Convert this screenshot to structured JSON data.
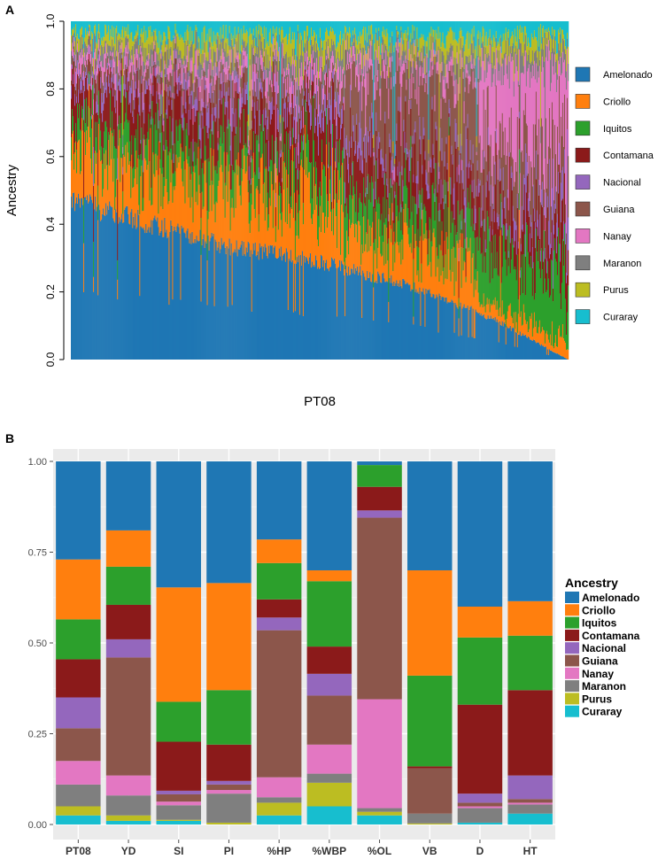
{
  "chart_data": [
    {
      "panel": "A",
      "type": "bar",
      "subtype": "stacked-100-percent-admixture",
      "xlabel": "PT08",
      "ylabel": "Ancestry",
      "ylim": [
        0,
        1
      ],
      "yticks": [
        "0.0",
        "0.2",
        "0.4",
        "0.6",
        "0.8",
        "1.0"
      ],
      "n_individuals": 560,
      "sorted_by": "Amelonado",
      "legend_position": "right",
      "legend": [
        "Amelonado",
        "Criollo",
        "Iquitos",
        "Contamana",
        "Nacional",
        "Guiana",
        "Nanay",
        "Maranon",
        "Purus",
        "Curaray"
      ],
      "colors": {
        "Amelonado": "#1f77b4",
        "Criollo": "#ff7f0e",
        "Iquitos": "#2ca02c",
        "Contamana": "#8b1a1a",
        "Nacional": "#9467bd",
        "Guiana": "#8c564b",
        "Nanay": "#e377c2",
        "Maranon": "#7f7f7f",
        "Purus": "#bcbd22",
        "Curaray": "#17becf"
      },
      "amelonado_profile": [
        [
          0,
          0.47
        ],
        [
          0.3,
          0.34
        ],
        [
          0.5,
          0.29
        ],
        [
          0.7,
          0.21
        ],
        [
          0.85,
          0.12
        ],
        [
          0.95,
          0.04
        ],
        [
          1.0,
          0.0
        ]
      ]
    },
    {
      "panel": "B",
      "type": "bar",
      "subtype": "stacked-100-percent",
      "title": "",
      "xlabel": "",
      "ylabel": "",
      "ylim": [
        0,
        1
      ],
      "yticks": [
        "0.00",
        "0.25",
        "0.50",
        "0.75",
        "1.00"
      ],
      "legend_title": "Ancestry",
      "legend_position": "right",
      "categories": [
        "PT08",
        "YD",
        "SI",
        "PI",
        "%HP",
        "%WBP",
        "%OL",
        "VB",
        "D",
        "HT"
      ],
      "series": [
        {
          "name": "Curaray",
          "values": [
            0.025,
            0.01,
            0.01,
            0.0,
            0.025,
            0.05,
            0.025,
            0.0,
            0.005,
            0.03
          ]
        },
        {
          "name": "Purus",
          "values": [
            0.025,
            0.015,
            0.003,
            0.005,
            0.035,
            0.065,
            0.01,
            0.003,
            0.0,
            0.0
          ]
        },
        {
          "name": "Maranon",
          "values": [
            0.06,
            0.055,
            0.04,
            0.08,
            0.015,
            0.025,
            0.01,
            0.027,
            0.04,
            0.025
          ]
        },
        {
          "name": "Nanay",
          "values": [
            0.065,
            0.055,
            0.01,
            0.01,
            0.055,
            0.08,
            0.3,
            0.0,
            0.005,
            0.005
          ]
        },
        {
          "name": "Guiana",
          "values": [
            0.09,
            0.325,
            0.02,
            0.015,
            0.405,
            0.135,
            0.5,
            0.125,
            0.01,
            0.01
          ]
        },
        {
          "name": "Nacional",
          "values": [
            0.085,
            0.05,
            0.01,
            0.01,
            0.035,
            0.06,
            0.02,
            0.0,
            0.025,
            0.065
          ]
        },
        {
          "name": "Contamana",
          "values": [
            0.105,
            0.095,
            0.135,
            0.1,
            0.05,
            0.075,
            0.065,
            0.005,
            0.245,
            0.235
          ]
        },
        {
          "name": "Iquitos",
          "values": [
            0.11,
            0.105,
            0.11,
            0.15,
            0.1,
            0.18,
            0.06,
            0.25,
            0.185,
            0.15
          ]
        },
        {
          "name": "Criollo",
          "values": [
            0.165,
            0.1,
            0.315,
            0.295,
            0.065,
            0.03,
            0.0,
            0.29,
            0.085,
            0.095
          ]
        },
        {
          "name": "Amelonado",
          "values": [
            0.27,
            0.19,
            0.347,
            0.335,
            0.215,
            0.3,
            0.01,
            0.3,
            0.4,
            0.385
          ]
        }
      ]
    }
  ],
  "figure": {
    "panel_a_label": "A",
    "panel_b_label": "B"
  }
}
